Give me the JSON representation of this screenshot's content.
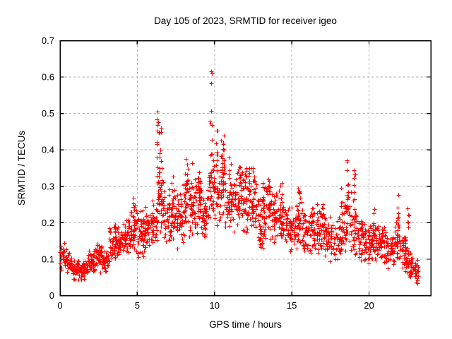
{
  "page": {
    "background": "#ffffff"
  },
  "chart_data": {
    "type": "scatter",
    "title": "Day 105 of 2023, SRMTID for receiver igeo",
    "xlabel": "GPS time / hours",
    "ylabel": "SRMTID / TECUs",
    "xlim": [
      0,
      24
    ],
    "ylim": [
      0,
      0.7
    ],
    "xticks": [
      0,
      5,
      10,
      15,
      20
    ],
    "xtick_labels": [
      "0",
      "5",
      "10",
      "15",
      "20"
    ],
    "yticks": [
      0,
      0.1,
      0.2,
      0.3,
      0.4,
      0.5,
      0.6,
      0.7
    ],
    "ytick_labels": [
      "0",
      "0.1",
      "0.2",
      "0.3",
      "0.4",
      "0.5",
      "0.6",
      "0.7"
    ],
    "grid": true,
    "legend": "none",
    "marker": "plus",
    "marker_color": "#ff0000",
    "grid_color": "#b3b3b3",
    "border_color": "#000000",
    "text_color": "#000000",
    "data_time_range_hours": [
      0,
      23.2
    ],
    "max_value_tecus": 0.615,
    "max_value_hour": 9.8,
    "seed": 42,
    "band_segments_format": "[hour_start, hour_end, y_min, y_max, n_points]",
    "band_segments": [
      [
        0.0,
        0.4,
        0.06,
        0.15,
        30
      ],
      [
        0.4,
        0.8,
        0.05,
        0.13,
        34
      ],
      [
        0.8,
        1.3,
        0.04,
        0.1,
        40
      ],
      [
        1.3,
        1.8,
        0.04,
        0.1,
        40
      ],
      [
        1.8,
        2.3,
        0.05,
        0.13,
        40
      ],
      [
        2.3,
        2.7,
        0.06,
        0.16,
        36
      ],
      [
        2.7,
        3.2,
        0.06,
        0.13,
        40
      ],
      [
        3.2,
        3.6,
        0.08,
        0.2,
        36
      ],
      [
        3.6,
        4.1,
        0.09,
        0.19,
        40
      ],
      [
        4.1,
        4.5,
        0.1,
        0.22,
        36
      ],
      [
        4.5,
        5.0,
        0.1,
        0.26,
        42
      ],
      [
        5.0,
        5.5,
        0.1,
        0.24,
        42
      ],
      [
        5.5,
        6.0,
        0.12,
        0.26,
        42
      ],
      [
        6.0,
        6.3,
        0.13,
        0.28,
        26
      ],
      [
        6.3,
        6.7,
        0.15,
        0.38,
        34
      ],
      [
        6.7,
        7.1,
        0.13,
        0.31,
        34
      ],
      [
        7.1,
        7.6,
        0.13,
        0.3,
        40
      ],
      [
        7.6,
        8.0,
        0.12,
        0.28,
        34
      ],
      [
        8.0,
        8.4,
        0.15,
        0.36,
        34
      ],
      [
        8.4,
        8.8,
        0.15,
        0.33,
        34
      ],
      [
        8.8,
        9.2,
        0.16,
        0.36,
        34
      ],
      [
        9.2,
        9.6,
        0.14,
        0.3,
        34
      ],
      [
        9.6,
        9.9,
        0.17,
        0.38,
        26
      ],
      [
        9.9,
        10.3,
        0.18,
        0.4,
        34
      ],
      [
        10.3,
        10.8,
        0.18,
        0.43,
        40
      ],
      [
        10.8,
        11.3,
        0.15,
        0.34,
        40
      ],
      [
        11.3,
        11.8,
        0.15,
        0.37,
        40
      ],
      [
        11.8,
        12.2,
        0.16,
        0.35,
        34
      ],
      [
        12.2,
        12.7,
        0.15,
        0.36,
        40
      ],
      [
        12.7,
        13.2,
        0.1,
        0.31,
        40
      ],
      [
        13.2,
        13.7,
        0.14,
        0.33,
        40
      ],
      [
        13.7,
        14.2,
        0.13,
        0.3,
        40
      ],
      [
        14.2,
        14.7,
        0.12,
        0.27,
        40
      ],
      [
        14.7,
        15.2,
        0.11,
        0.25,
        40
      ],
      [
        15.2,
        15.7,
        0.12,
        0.28,
        40
      ],
      [
        15.7,
        16.2,
        0.1,
        0.24,
        40
      ],
      [
        16.2,
        16.7,
        0.1,
        0.26,
        40
      ],
      [
        16.7,
        17.2,
        0.1,
        0.25,
        40
      ],
      [
        17.2,
        17.7,
        0.09,
        0.22,
        40
      ],
      [
        17.7,
        18.2,
        0.09,
        0.22,
        40
      ],
      [
        18.2,
        18.7,
        0.1,
        0.3,
        36
      ],
      [
        18.7,
        19.2,
        0.1,
        0.29,
        36
      ],
      [
        19.2,
        19.7,
        0.08,
        0.22,
        40
      ],
      [
        19.7,
        20.1,
        0.08,
        0.2,
        34
      ],
      [
        20.1,
        20.6,
        0.08,
        0.22,
        40
      ],
      [
        20.6,
        21.1,
        0.07,
        0.2,
        40
      ],
      [
        21.1,
        21.6,
        0.07,
        0.18,
        40
      ],
      [
        21.6,
        22.0,
        0.08,
        0.24,
        34
      ],
      [
        22.0,
        22.4,
        0.06,
        0.18,
        34
      ],
      [
        22.4,
        22.8,
        0.04,
        0.15,
        34
      ],
      [
        22.8,
        23.2,
        0.03,
        0.12,
        30
      ]
    ],
    "spike_columns_format": "[hour, y_min, y_max, n_points]",
    "spike_columns": [
      [
        3.55,
        0.12,
        0.21,
        8
      ],
      [
        4.8,
        0.14,
        0.27,
        9
      ],
      [
        5.3,
        0.15,
        0.25,
        7
      ],
      [
        6.32,
        0.28,
        0.5,
        13
      ],
      [
        6.5,
        0.24,
        0.455,
        10
      ],
      [
        7.3,
        0.2,
        0.33,
        8
      ],
      [
        8.2,
        0.24,
        0.4,
        11
      ],
      [
        8.55,
        0.22,
        0.37,
        9
      ],
      [
        9.0,
        0.24,
        0.38,
        9
      ],
      [
        9.75,
        0.28,
        0.5,
        8
      ],
      [
        10.15,
        0.28,
        0.455,
        9
      ],
      [
        10.55,
        0.26,
        0.435,
        10
      ],
      [
        11.0,
        0.25,
        0.38,
        8
      ],
      [
        11.65,
        0.26,
        0.385,
        9
      ],
      [
        12.05,
        0.26,
        0.355,
        8
      ],
      [
        12.25,
        0.25,
        0.37,
        8
      ],
      [
        12.55,
        0.25,
        0.355,
        8
      ],
      [
        13.15,
        0.22,
        0.33,
        8
      ],
      [
        13.55,
        0.22,
        0.335,
        8
      ],
      [
        14.3,
        0.2,
        0.31,
        8
      ],
      [
        15.45,
        0.18,
        0.295,
        8
      ],
      [
        16.3,
        0.16,
        0.26,
        7
      ],
      [
        17.0,
        0.16,
        0.265,
        7
      ],
      [
        18.6,
        0.22,
        0.375,
        11
      ],
      [
        19.05,
        0.2,
        0.345,
        9
      ],
      [
        20.3,
        0.12,
        0.24,
        7
      ],
      [
        21.9,
        0.13,
        0.28,
        10
      ],
      [
        22.5,
        0.1,
        0.25,
        7
      ]
    ],
    "outlier_points_format": "[hour, value]",
    "outlier_points": [
      [
        9.78,
        0.615
      ],
      [
        9.81,
        0.609
      ],
      [
        9.79,
        0.583
      ],
      [
        9.76,
        0.507
      ],
      [
        6.33,
        0.505
      ],
      [
        6.35,
        0.477
      ],
      [
        6.52,
        0.46
      ],
      [
        10.2,
        0.452
      ],
      [
        10.6,
        0.44
      ]
    ]
  }
}
